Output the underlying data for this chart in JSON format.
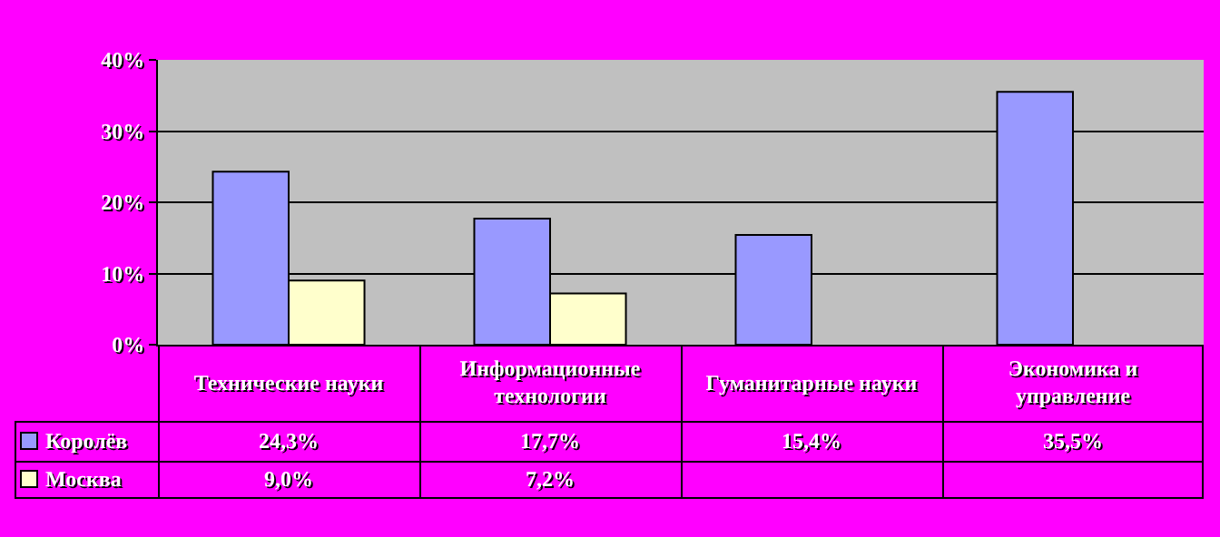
{
  "chart_data": {
    "type": "bar",
    "categories": [
      "Технические науки",
      "Информационные технологии",
      "Гуманитарные науки",
      "Экономика и управление"
    ],
    "series": [
      {
        "name": "Королёв",
        "color": "#9999ff",
        "values": [
          24.3,
          17.7,
          15.4,
          35.5
        ],
        "value_labels": [
          "24,3%",
          "17,7%",
          "15,4%",
          "35,5%"
        ]
      },
      {
        "name": "Москва",
        "color": "#ffffcc",
        "values": [
          9.0,
          7.2,
          null,
          null
        ],
        "value_labels": [
          "9,0%",
          "7,2%",
          null,
          null
        ]
      }
    ],
    "ylim": [
      0,
      40
    ],
    "yticks": [
      {
        "value": 0,
        "label": "0%"
      },
      {
        "value": 10,
        "label": "10%"
      },
      {
        "value": 20,
        "label": "20%"
      },
      {
        "value": 30,
        "label": "30%"
      },
      {
        "value": 40,
        "label": "40%"
      }
    ],
    "grid": "y",
    "legend": "bottom left"
  }
}
